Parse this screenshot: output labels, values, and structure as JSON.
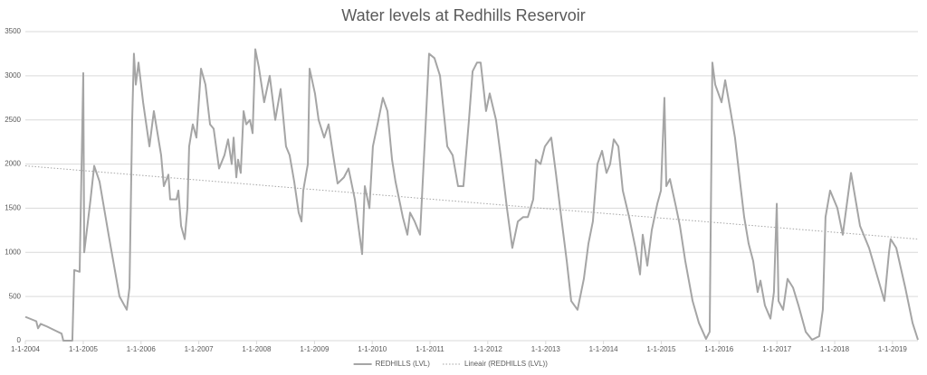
{
  "chart_data": {
    "type": "line",
    "title": "Water levels at Redhills Reservoir",
    "xlim": [
      "2004-01-01",
      "2019-06-11"
    ],
    "ylim": [
      0,
      3500
    ],
    "yticks": [
      0,
      500,
      1000,
      1500,
      2000,
      2500,
      3000,
      3500
    ],
    "xticks": [
      {
        "value": "2004-01-01",
        "label": "1-1-2004"
      },
      {
        "value": "2005-01-01",
        "label": "1-1-2005"
      },
      {
        "value": "2006-01-01",
        "label": "1-1-2006"
      },
      {
        "value": "2007-01-01",
        "label": "1-1-2007"
      },
      {
        "value": "2008-01-01",
        "label": "1-1-2008"
      },
      {
        "value": "2009-01-01",
        "label": "1-1-2009"
      },
      {
        "value": "2010-01-01",
        "label": "1-1-2010"
      },
      {
        "value": "2011-01-01",
        "label": "1-1-2011"
      },
      {
        "value": "2012-01-01",
        "label": "1-1-2012"
      },
      {
        "value": "2013-01-01",
        "label": "1-1-2013"
      },
      {
        "value": "2014-01-01",
        "label": "1-1-2014"
      },
      {
        "value": "2015-01-01",
        "label": "1-1-2015"
      },
      {
        "value": "2016-01-01",
        "label": "1-1-2016"
      },
      {
        "value": "2017-01-01",
        "label": "1-1-2017"
      },
      {
        "value": "2018-01-01",
        "label": "1-1-2018"
      },
      {
        "value": "2019-01-01",
        "label": "1-1-2019"
      }
    ],
    "grid": true,
    "legend": "bottom",
    "series": [
      {
        "name": "REDHILLS (LVL)",
        "color": "#a5a5a5",
        "style": "solid",
        "x": [
          "2004-01-01",
          "2004-03-10",
          "2004-03-21",
          "2004-04-07",
          "2004-05-17",
          "2004-07-13",
          "2004-08-17",
          "2004-08-28",
          "2004-10-24",
          "2004-11-05",
          "2004-12-09",
          "2005-01-01",
          "2005-01-07",
          "2005-02-16",
          "2005-03-11",
          "2005-04-14",
          "2005-06-10",
          "2005-08-18",
          "2005-10-03",
          "2005-10-20",
          "2005-11-06",
          "2005-11-17",
          "2005-11-29",
          "2005-12-16",
          "2006-01-14",
          "2006-02-23",
          "2006-03-23",
          "2006-05-08",
          "2006-05-25",
          "2006-06-23",
          "2006-07-04",
          "2006-08-13",
          "2006-08-25",
          "2006-09-11",
          "2006-10-04",
          "2006-10-21",
          "2006-11-01",
          "2006-11-24",
          "2006-12-17",
          "2007-01-15",
          "2007-02-12",
          "2007-03-13",
          "2007-04-05",
          "2007-05-09",
          "2007-06-12",
          "2007-07-05",
          "2007-07-28",
          "2007-08-09",
          "2007-08-26",
          "2007-09-06",
          "2007-09-23",
          "2007-10-11",
          "2007-10-28",
          "2007-11-20",
          "2007-12-07",
          "2007-12-24",
          "2008-01-15",
          "2008-02-18",
          "2008-03-24",
          "2008-04-28",
          "2008-06-01",
          "2008-07-05",
          "2008-07-28",
          "2008-08-26",
          "2008-09-23",
          "2008-10-11",
          "2008-10-22",
          "2008-11-20",
          "2008-12-01",
          "2009-01-04",
          "2009-01-27",
          "2009-03-03",
          "2009-03-31",
          "2009-04-29",
          "2009-05-27",
          "2009-07-06",
          "2009-08-04",
          "2009-09-13",
          "2009-10-29",
          "2009-11-15",
          "2009-12-14",
          "2010-01-05",
          "2010-02-09",
          "2010-03-09",
          "2010-04-07",
          "2010-05-06",
          "2010-05-28",
          "2010-07-13",
          "2010-08-11",
          "2010-08-28",
          "2010-09-26",
          "2010-10-30",
          "2010-12-03",
          "2010-12-26",
          "2011-01-29",
          "2011-03-05",
          "2011-03-28",
          "2011-04-20",
          "2011-05-24",
          "2011-06-27",
          "2011-07-31",
          "2011-09-04",
          "2011-09-27",
          "2011-10-25",
          "2011-11-17",
          "2011-12-21",
          "2012-01-13",
          "2012-02-22",
          "2012-03-22",
          "2012-05-01",
          "2012-06-04",
          "2012-07-09",
          "2012-08-12",
          "2012-09-10",
          "2012-10-14",
          "2012-10-31",
          "2012-11-29",
          "2012-12-27",
          "2013-02-05",
          "2013-03-06",
          "2013-04-09",
          "2013-05-14",
          "2013-06-11",
          "2013-07-21",
          "2013-08-30",
          "2013-09-28",
          "2013-10-26",
          "2013-11-24",
          "2013-12-23",
          "2014-01-20",
          "2014-02-12",
          "2014-03-07",
          "2014-04-05",
          "2014-05-03",
          "2014-06-12",
          "2014-07-22",
          "2014-08-20",
          "2014-09-06",
          "2014-10-05",
          "2014-11-02",
          "2014-12-07",
          "2014-12-30",
          "2015-01-21",
          "2015-02-02",
          "2015-02-25",
          "2015-04-06",
          "2015-04-29",
          "2015-06-02",
          "2015-07-18",
          "2015-08-27",
          "2015-10-11",
          "2015-11-03",
          "2015-11-20",
          "2015-12-08",
          "2016-01-17",
          "2016-02-09",
          "2016-03-14",
          "2016-04-11",
          "2016-05-16",
          "2016-06-08",
          "2016-07-06",
          "2016-08-04",
          "2016-09-01",
          "2016-09-19",
          "2016-10-17",
          "2016-11-21",
          "2016-12-13",
          "2016-12-31",
          "2017-01-11",
          "2017-02-09",
          "2017-03-09",
          "2017-04-13",
          "2017-05-17",
          "2017-07-02",
          "2017-08-11",
          "2017-09-25",
          "2017-10-18",
          "2017-11-04",
          "2017-12-03",
          "2018-01-18",
          "2018-02-21",
          "2018-04-14",
          "2018-06-10",
          "2018-08-06",
          "2018-10-02",
          "2018-11-11",
          "2018-12-10",
          "2018-12-21",
          "2019-01-25",
          "2019-03-23",
          "2019-05-08",
          "2019-06-11"
        ],
        "values": [
          270,
          220,
          140,
          190,
          160,
          110,
          80,
          0,
          0,
          800,
          780,
          3030,
          1000,
          1600,
          1980,
          1800,
          1200,
          500,
          350,
          600,
          2500,
          3250,
          2900,
          3150,
          2700,
          2200,
          2600,
          2100,
          1750,
          1880,
          1600,
          1600,
          1700,
          1300,
          1150,
          1500,
          2200,
          2450,
          2300,
          3080,
          2900,
          2450,
          2400,
          1950,
          2100,
          2280,
          2000,
          2300,
          1850,
          2050,
          1900,
          2600,
          2450,
          2500,
          2350,
          3300,
          3100,
          2700,
          3000,
          2500,
          2850,
          2200,
          2100,
          1800,
          1450,
          1350,
          1700,
          2000,
          3080,
          2800,
          2500,
          2300,
          2450,
          2100,
          1780,
          1850,
          1950,
          1600,
          980,
          1750,
          1500,
          2200,
          2500,
          2750,
          2600,
          2050,
          1800,
          1400,
          1200,
          1450,
          1350,
          1200,
          2400,
          3250,
          3200,
          3000,
          2600,
          2200,
          2100,
          1750,
          1750,
          2500,
          3050,
          3150,
          3150,
          2600,
          2800,
          2500,
          2100,
          1500,
          1050,
          1350,
          1400,
          1400,
          1600,
          2050,
          2000,
          2200,
          2300,
          1900,
          1400,
          900,
          450,
          350,
          700,
          1100,
          1350,
          2000,
          2150,
          1900,
          2000,
          2280,
          2200,
          1700,
          1400,
          1050,
          750,
          1200,
          850,
          1250,
          1550,
          1700,
          2750,
          1750,
          1830,
          1500,
          1300,
          900,
          450,
          200,
          20,
          100,
          3150,
          2900,
          2700,
          2950,
          2600,
          2300,
          1750,
          1400,
          1100,
          900,
          550,
          680,
          400,
          250,
          550,
          1550,
          450,
          350,
          700,
          600,
          400,
          100,
          10,
          50,
          350,
          1400,
          1700,
          1500,
          1200,
          1900,
          1300,
          1050,
          700,
          450,
          1000,
          1150,
          1050,
          600,
          200,
          10
        ]
      },
      {
        "name": "Lineair (REDHILLS (LVL))",
        "color": "#a5a5a5",
        "style": "dotted",
        "x": [
          "2004-01-01",
          "2019-06-11"
        ],
        "values": [
          1980,
          1150
        ]
      }
    ]
  }
}
